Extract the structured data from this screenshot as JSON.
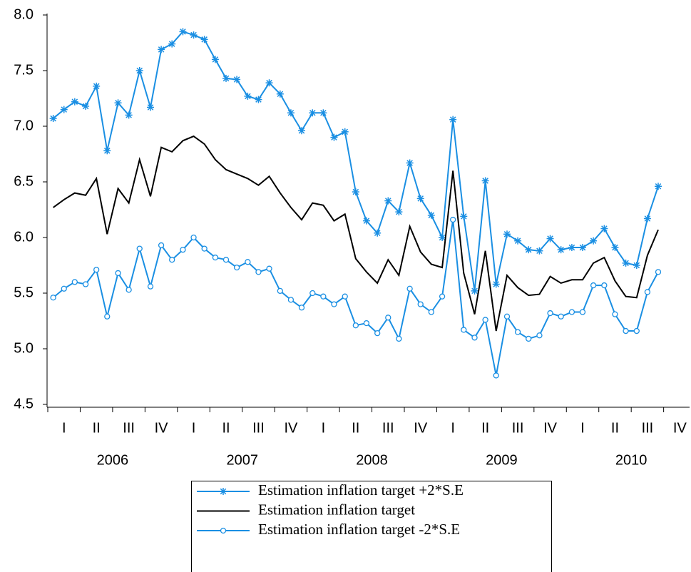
{
  "chart_data": {
    "type": "line",
    "x": [
      2006.042,
      2006.125,
      2006.208,
      2006.292,
      2006.375,
      2006.458,
      2006.542,
      2006.625,
      2006.708,
      2006.792,
      2006.875,
      2006.958,
      2007.042,
      2007.125,
      2007.208,
      2007.292,
      2007.375,
      2007.458,
      2007.542,
      2007.625,
      2007.708,
      2007.792,
      2007.875,
      2007.958,
      2008.042,
      2008.125,
      2008.208,
      2008.292,
      2008.375,
      2008.458,
      2008.542,
      2008.625,
      2008.708,
      2008.792,
      2008.875,
      2008.958,
      2009.042,
      2009.125,
      2009.208,
      2009.292,
      2009.375,
      2009.458,
      2009.542,
      2009.625,
      2009.708,
      2009.792,
      2009.875,
      2009.958,
      2010.042,
      2010.125,
      2010.208,
      2010.292,
      2010.375,
      2010.458,
      2010.542,
      2010.625,
      2010.708
    ],
    "series": [
      {
        "name": "Estimation inflation target +2*S.E",
        "color": "#1a8fe3",
        "marker": "star",
        "values": [
          7.07,
          7.15,
          7.22,
          7.18,
          7.36,
          6.78,
          7.21,
          7.1,
          7.5,
          7.17,
          7.69,
          7.74,
          7.85,
          7.82,
          7.78,
          7.6,
          7.43,
          7.42,
          7.27,
          7.24,
          7.39,
          7.29,
          7.12,
          6.96,
          7.12,
          7.12,
          6.9,
          6.95,
          6.41,
          6.15,
          6.04,
          6.33,
          6.23,
          6.67,
          6.35,
          6.2,
          6.0,
          7.06,
          6.19,
          5.52,
          6.51,
          5.58,
          6.03,
          5.97,
          5.89,
          5.88,
          5.99,
          5.89,
          5.91,
          5.91,
          5.97,
          6.08,
          5.91,
          5.77,
          5.75,
          6.17,
          6.46
        ]
      },
      {
        "name": "Estimation inflation target",
        "color": "#000000",
        "marker": "none",
        "values": [
          6.27,
          6.34,
          6.4,
          6.38,
          6.53,
          6.03,
          6.44,
          6.31,
          6.7,
          6.37,
          6.81,
          6.77,
          6.87,
          6.91,
          6.84,
          6.7,
          6.61,
          6.57,
          6.53,
          6.47,
          6.55,
          6.4,
          6.27,
          6.16,
          6.31,
          6.29,
          6.15,
          6.21,
          5.81,
          5.69,
          5.59,
          5.8,
          5.66,
          6.1,
          5.87,
          5.76,
          5.73,
          6.6,
          5.68,
          5.31,
          5.88,
          5.16,
          5.66,
          5.55,
          5.48,
          5.49,
          5.65,
          5.59,
          5.62,
          5.62,
          5.77,
          5.82,
          5.61,
          5.47,
          5.46,
          5.84,
          6.07
        ]
      },
      {
        "name": "Estimation inflation target -2*S.E",
        "color": "#1a8fe3",
        "marker": "circle",
        "values": [
          5.46,
          5.54,
          5.6,
          5.58,
          5.71,
          5.29,
          5.68,
          5.53,
          5.9,
          5.56,
          5.93,
          5.8,
          5.89,
          6.0,
          5.9,
          5.82,
          5.8,
          5.73,
          5.78,
          5.69,
          5.72,
          5.52,
          5.44,
          5.37,
          5.5,
          5.47,
          5.4,
          5.47,
          5.21,
          5.23,
          5.14,
          5.28,
          5.09,
          5.54,
          5.4,
          5.33,
          5.47,
          6.16,
          5.17,
          5.1,
          5.26,
          4.76,
          5.29,
          5.15,
          5.09,
          5.12,
          5.32,
          5.29,
          5.33,
          5.33,
          5.57,
          5.57,
          5.31,
          5.16,
          5.16,
          5.51,
          5.69
        ]
      }
    ],
    "xlim": [
      2006,
      2010.95
    ],
    "xticks": [
      {
        "value": 2006.125,
        "label": "I"
      },
      {
        "value": 2006.375,
        "label": "II"
      },
      {
        "value": 2006.625,
        "label": "III"
      },
      {
        "value": 2006.875,
        "label": "IV"
      },
      {
        "value": 2007.125,
        "label": "I"
      },
      {
        "value": 2007.375,
        "label": "II"
      },
      {
        "value": 2007.625,
        "label": "III"
      },
      {
        "value": 2007.875,
        "label": "IV"
      },
      {
        "value": 2008.125,
        "label": "I"
      },
      {
        "value": 2008.375,
        "label": "II"
      },
      {
        "value": 2008.625,
        "label": "III"
      },
      {
        "value": 2008.875,
        "label": "IV"
      },
      {
        "value": 2009.125,
        "label": "I"
      },
      {
        "value": 2009.375,
        "label": "II"
      },
      {
        "value": 2009.625,
        "label": "III"
      },
      {
        "value": 2009.875,
        "label": "IV"
      },
      {
        "value": 2010.125,
        "label": "I"
      },
      {
        "value": 2010.375,
        "label": "II"
      },
      {
        "value": 2010.625,
        "label": "III"
      },
      {
        "value": 2010.875,
        "label": "IV"
      }
    ],
    "year_labels": [
      {
        "value": 2006.5,
        "label": "2006"
      },
      {
        "value": 2007.5,
        "label": "2007"
      },
      {
        "value": 2008.5,
        "label": "2008"
      },
      {
        "value": 2009.5,
        "label": "2009"
      },
      {
        "value": 2010.5,
        "label": "2010"
      }
    ],
    "ylim": [
      4.5,
      8.0
    ],
    "yticks": [
      {
        "value": 4.5,
        "label": "4.5"
      },
      {
        "value": 5.0,
        "label": "5.0"
      },
      {
        "value": 5.5,
        "label": "5.5"
      },
      {
        "value": 6.0,
        "label": "6.0"
      },
      {
        "value": 6.5,
        "label": "6.5"
      },
      {
        "value": 7.0,
        "label": "7.0"
      },
      {
        "value": 7.5,
        "label": "7.5"
      },
      {
        "value": 8.0,
        "label": "8.0"
      }
    ],
    "grid": false,
    "legend": "bottom"
  }
}
